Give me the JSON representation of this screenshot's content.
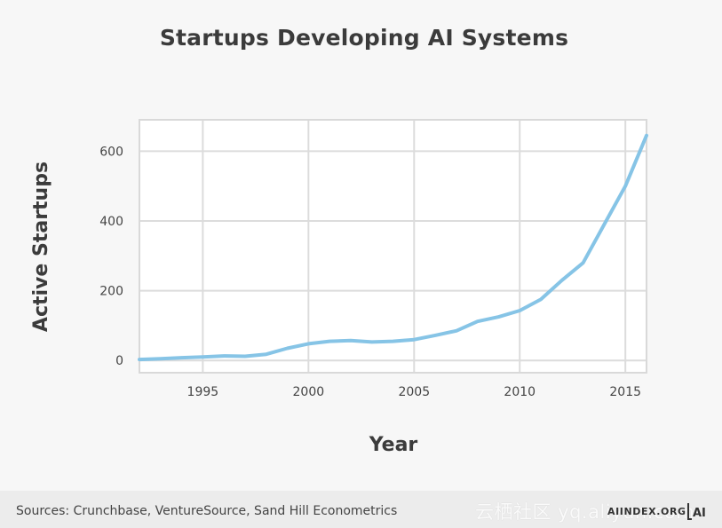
{
  "chart_data": {
    "type": "line",
    "title": "Startups Developing AI Systems",
    "xlabel": "Year",
    "ylabel": "Active Startups",
    "xlim": [
      1992,
      2016
    ],
    "ylim": [
      -35,
      690
    ],
    "xticks": [
      1995,
      2000,
      2005,
      2010,
      2015
    ],
    "yticks": [
      0,
      200,
      400,
      600
    ],
    "grid": true,
    "line_color": "#86c4e6",
    "series": [
      {
        "x": [
          1992,
          1993,
          1994,
          1995,
          1996,
          1997,
          1998,
          1999,
          2000,
          2001,
          2002,
          2003,
          2004,
          2005,
          2006,
          2007,
          2008,
          2009,
          2010,
          2011,
          2012,
          2013,
          2014,
          2015,
          2016
        ],
        "values": [
          3,
          5,
          8,
          10,
          13,
          12,
          18,
          35,
          48,
          55,
          57,
          53,
          55,
          60,
          72,
          85,
          112,
          125,
          143,
          175,
          230,
          280,
          390,
          500,
          645
        ]
      }
    ]
  },
  "footer": {
    "sources": "Sources: Crunchbase, VentureSource, Sand Hill Econometrics",
    "brand": "AIINDEX.ORG",
    "logo_text": "AI",
    "watermark": "云栖社区 yq.aliyun.com"
  }
}
